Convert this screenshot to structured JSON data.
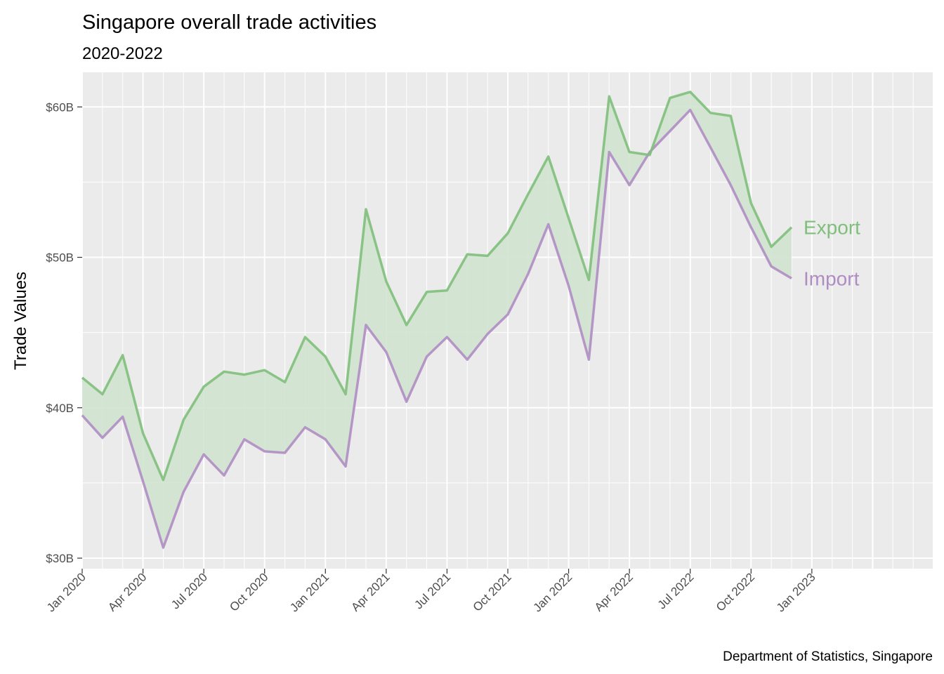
{
  "chart_data": {
    "type": "area",
    "title": "Singapore overall trade activities",
    "subtitle": "2020-2022",
    "ylabel": "Trade Values",
    "xlabel": "",
    "caption": "Department of Statistics, Singapore",
    "x": [
      "2020-01",
      "2020-02",
      "2020-03",
      "2020-04",
      "2020-05",
      "2020-06",
      "2020-07",
      "2020-08",
      "2020-09",
      "2020-10",
      "2020-11",
      "2020-12",
      "2021-01",
      "2021-02",
      "2021-03",
      "2021-04",
      "2021-05",
      "2021-06",
      "2021-07",
      "2021-08",
      "2021-09",
      "2021-10",
      "2021-11",
      "2021-12",
      "2022-01",
      "2022-02",
      "2022-03",
      "2022-04",
      "2022-05",
      "2022-06",
      "2022-07",
      "2022-08",
      "2022-09",
      "2022-10",
      "2022-11",
      "2022-12"
    ],
    "series": [
      {
        "name": "Export",
        "color": "#7fbf7b",
        "values": [
          42.0,
          40.9,
          43.5,
          38.3,
          35.2,
          39.2,
          41.4,
          42.4,
          42.2,
          42.5,
          41.7,
          44.7,
          43.4,
          40.9,
          53.2,
          48.4,
          45.5,
          47.7,
          47.8,
          50.2,
          50.1,
          51.6,
          54.2,
          56.7,
          52.6,
          48.5,
          60.7,
          57.0,
          56.8,
          60.6,
          61.0,
          59.6,
          59.4,
          53.6,
          50.7,
          52.0
        ]
      },
      {
        "name": "Import",
        "color": "#af8dc3",
        "values": [
          39.5,
          38.0,
          39.4,
          35.1,
          30.7,
          34.4,
          36.9,
          35.5,
          37.9,
          37.1,
          37.0,
          38.7,
          37.9,
          36.1,
          45.5,
          43.7,
          40.4,
          43.4,
          44.7,
          43.2,
          44.9,
          46.2,
          48.9,
          52.2,
          48.1,
          43.2,
          57.0,
          54.8,
          57.0,
          58.4,
          59.8,
          57.3,
          54.8,
          52.0,
          49.4,
          48.6
        ]
      }
    ],
    "fill_color": "#d0e3d0",
    "y_ticks": [
      30,
      40,
      50,
      60
    ],
    "y_tick_labels": [
      "$30B",
      "$40B",
      "$50B",
      "$60B"
    ],
    "ylim": [
      29.3,
      62.3
    ],
    "x_tick_labels": [
      "Jan 2020",
      "Apr 2020",
      "Jul 2020",
      "Oct 2020",
      "Jan 2021",
      "Apr 2021",
      "Jul 2021",
      "Oct 2021",
      "Jan 2022",
      "Apr 2022",
      "Jul 2022",
      "Oct 2022",
      "Jan 2023"
    ],
    "xlim": [
      "2020-01",
      "2023-07"
    ],
    "grid": true,
    "legend": "direct labels at line ends"
  }
}
